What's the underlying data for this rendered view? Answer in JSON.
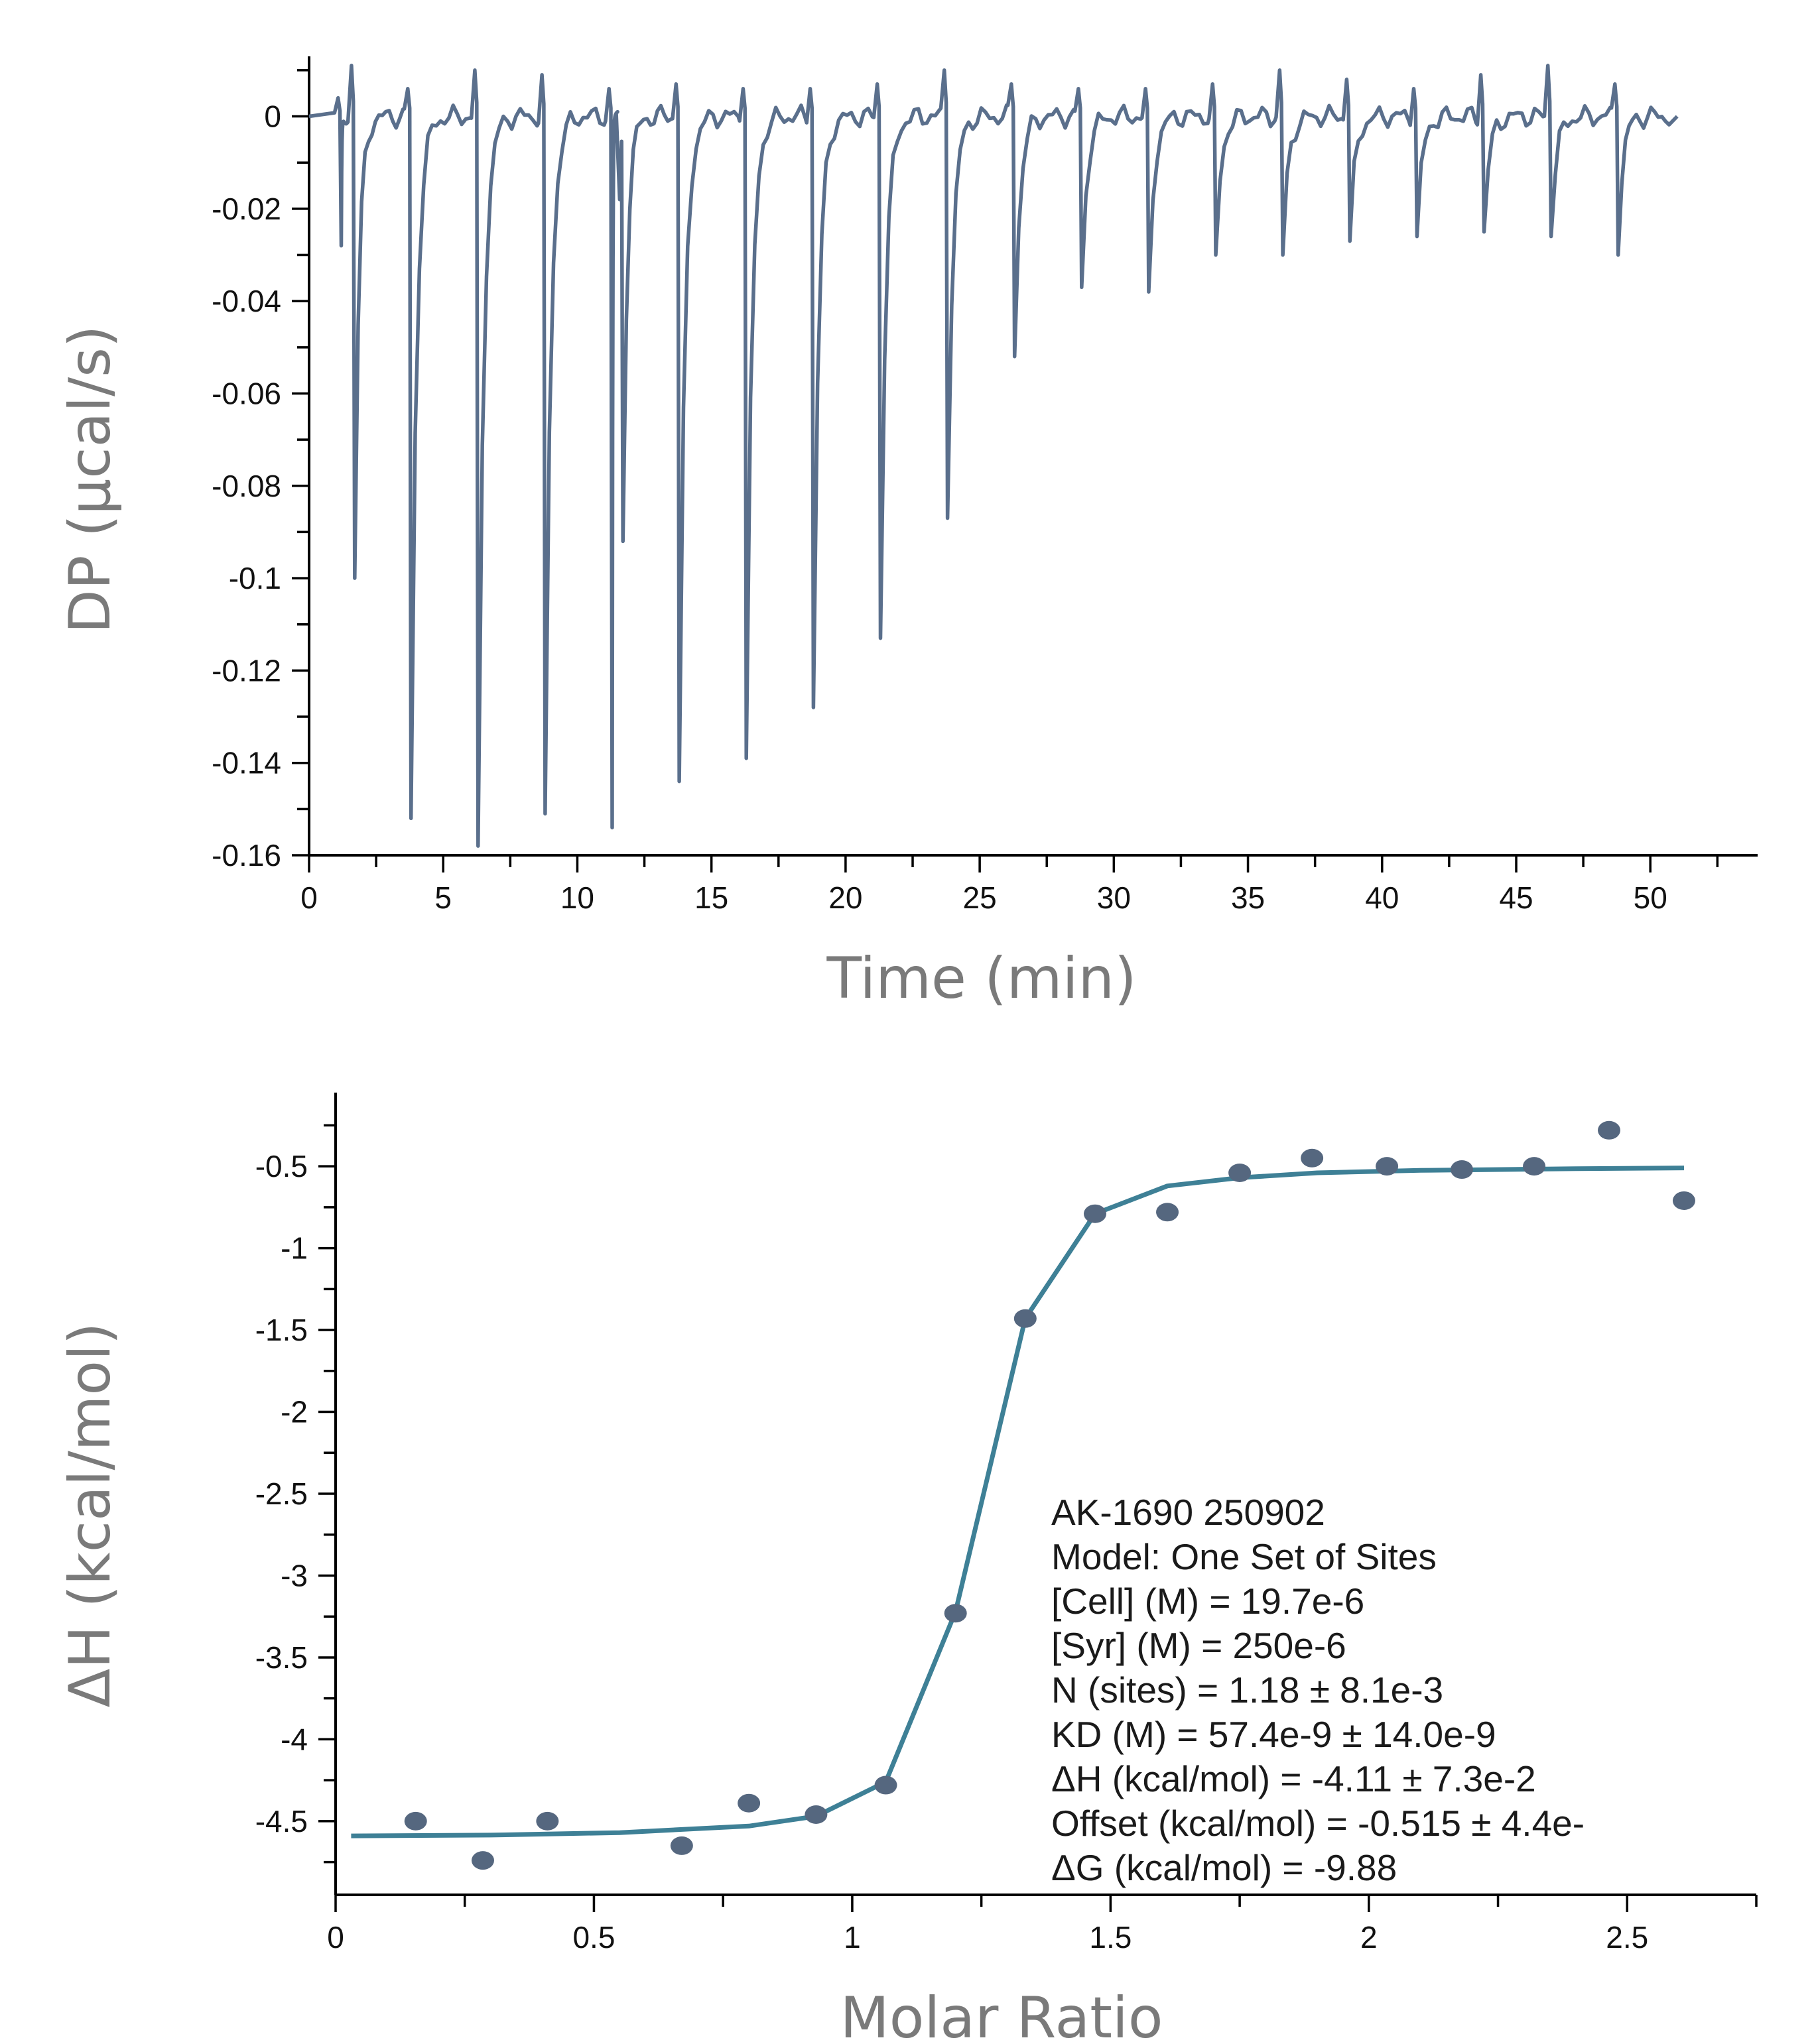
{
  "chart_data": [
    {
      "type": "line",
      "xlabel": "Time (min)",
      "ylabel": "DP (µcal/s)",
      "xlim": [
        0,
        54
      ],
      "ylim": [
        -0.16,
        0.013
      ],
      "x_ticks": [
        0,
        5,
        10,
        15,
        20,
        25,
        30,
        35,
        40,
        45,
        50
      ],
      "x_tick_labels": [
        "0",
        "5",
        "10",
        "15",
        "20",
        "25",
        "30",
        "35",
        "40",
        "45",
        "50"
      ],
      "y_ticks": [
        0,
        -0.02,
        -0.04,
        -0.06,
        -0.08,
        -0.1,
        -0.12,
        -0.14,
        -0.16
      ],
      "y_tick_labels": [
        "0",
        "-0.02",
        "-0.04",
        "-0.06",
        "-0.08",
        "-0.1",
        "-0.12",
        "-0.14",
        "-0.16"
      ],
      "grid": false,
      "line_color": "#5a6f8c",
      "baseline": 0,
      "injections": [
        {
          "time": 1.2,
          "min": -0.028,
          "max": 0.004
        },
        {
          "time": 1.7,
          "min": -0.1,
          "max": 0.011
        },
        {
          "time": 3.8,
          "min": -0.152,
          "max": 0.006
        },
        {
          "time": 6.3,
          "min": -0.158,
          "max": 0.01
        },
        {
          "time": 8.8,
          "min": -0.151,
          "max": 0.009
        },
        {
          "time": 11.3,
          "min": -0.154,
          "max": 0.006
        },
        {
          "time": 11.7,
          "min": -0.092,
          "max": -0.018
        },
        {
          "time": 13.8,
          "min": -0.144,
          "max": 0.007
        },
        {
          "time": 16.3,
          "min": -0.139,
          "max": 0.006
        },
        {
          "time": 18.8,
          "min": -0.128,
          "max": 0.006
        },
        {
          "time": 21.3,
          "min": -0.113,
          "max": 0.007
        },
        {
          "time": 23.8,
          "min": -0.087,
          "max": 0.01
        },
        {
          "time": 26.3,
          "min": -0.052,
          "max": 0.007
        },
        {
          "time": 28.8,
          "min": -0.037,
          "max": 0.006
        },
        {
          "time": 31.3,
          "min": -0.038,
          "max": 0.006
        },
        {
          "time": 33.8,
          "min": -0.03,
          "max": 0.007
        },
        {
          "time": 36.3,
          "min": -0.03,
          "max": 0.01
        },
        {
          "time": 38.8,
          "min": -0.027,
          "max": 0.008
        },
        {
          "time": 41.3,
          "min": -0.026,
          "max": 0.006
        },
        {
          "time": 43.8,
          "min": -0.025,
          "max": 0.009
        },
        {
          "time": 46.3,
          "min": -0.026,
          "max": 0.011
        },
        {
          "time": 48.8,
          "min": -0.03,
          "max": 0.007
        }
      ],
      "x_end": 51
    },
    {
      "type": "scatter",
      "xlabel": "Molar Ratio",
      "ylabel": "ΔH (kcal/mol)",
      "xlim": [
        0,
        2.75
      ],
      "ylim": [
        -4.95,
        -0.05
      ],
      "x_ticks": [
        0,
        0.5,
        1,
        1.5,
        2,
        2.5
      ],
      "x_tick_labels": [
        "0",
        "0.5",
        "1",
        "1.5",
        "2",
        "2.5"
      ],
      "y_ticks": [
        -0.5,
        -1,
        -1.5,
        -2,
        -2.5,
        -3,
        -3.5,
        -4,
        -4.5
      ],
      "y_tick_labels": [
        "-0.5",
        "-1",
        "-1.5",
        "-2",
        "-2.5",
        "-3",
        "-3.5",
        "-4",
        "-4.5"
      ],
      "grid": false,
      "point_color": "#55677f",
      "fit_color": "#3e8096",
      "points": [
        {
          "x": 0.155,
          "y": -4.5
        },
        {
          "x": 0.285,
          "y": -4.74
        },
        {
          "x": 0.41,
          "y": -4.5
        },
        {
          "x": 0.67,
          "y": -4.65
        },
        {
          "x": 0.8,
          "y": -4.39
        },
        {
          "x": 0.93,
          "y": -4.46
        },
        {
          "x": 1.065,
          "y": -4.28
        },
        {
          "x": 1.2,
          "y": -3.23
        },
        {
          "x": 1.335,
          "y": -1.43
        },
        {
          "x": 1.47,
          "y": -0.79
        },
        {
          "x": 1.61,
          "y": -0.78
        },
        {
          "x": 1.75,
          "y": -0.54
        },
        {
          "x": 1.89,
          "y": -0.45
        },
        {
          "x": 2.035,
          "y": -0.5
        },
        {
          "x": 2.18,
          "y": -0.52
        },
        {
          "x": 2.32,
          "y": -0.5
        },
        {
          "x": 2.465,
          "y": -0.28
        },
        {
          "x": 2.61,
          "y": -0.71
        }
      ],
      "fit_line": [
        {
          "x": 0.03,
          "y": -4.59
        },
        {
          "x": 0.3,
          "y": -4.585
        },
        {
          "x": 0.55,
          "y": -4.57
        },
        {
          "x": 0.8,
          "y": -4.53
        },
        {
          "x": 0.93,
          "y": -4.47
        },
        {
          "x": 1.065,
          "y": -4.26
        },
        {
          "x": 1.2,
          "y": -3.22
        },
        {
          "x": 1.335,
          "y": -1.43
        },
        {
          "x": 1.47,
          "y": -0.79
        },
        {
          "x": 1.61,
          "y": -0.62
        },
        {
          "x": 1.75,
          "y": -0.57
        },
        {
          "x": 1.9,
          "y": -0.54
        },
        {
          "x": 2.1,
          "y": -0.525
        },
        {
          "x": 2.4,
          "y": -0.515
        },
        {
          "x": 2.61,
          "y": -0.51
        }
      ],
      "annotation": [
        "AK-1690 250902",
        "Model: One Set of Sites",
        "[Cell] (M) = 19.7e-6",
        "[Syr] (M) = 250e-6",
        "N (sites) = 1.18 ± 8.1e-3",
        "KD (M) = 57.4e-9 ± 14.0e-9",
        "ΔH (kcal/mol) = -4.11 ± 7.3e-2",
        "Offset (kcal/mol) = -0.515 ± 4.4e-",
        "ΔG (kcal/mol) = -9.88"
      ]
    }
  ]
}
